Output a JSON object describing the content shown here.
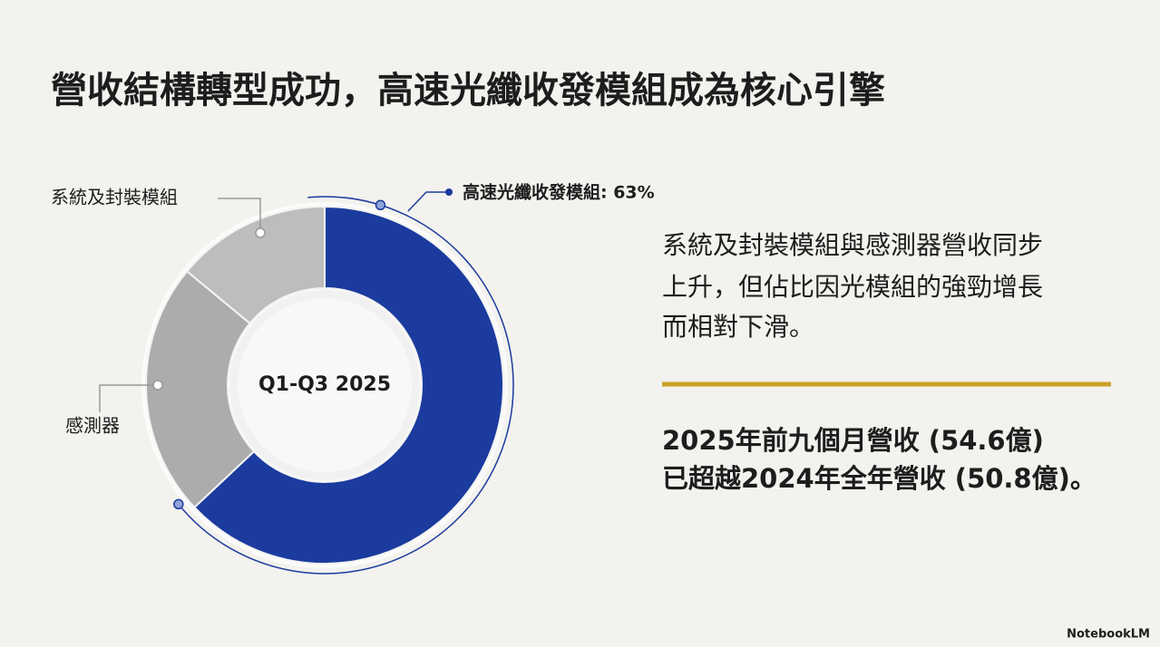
{
  "chart_data": {
    "type": "donut",
    "title": "營收結構轉型成功，高速光纖收發模組成為核心引擎",
    "center_label": "Q1-Q3 2025",
    "categories": [
      "高速光纖收發模組: 63%",
      "感測器",
      "系統及封裝模組"
    ],
    "values": [
      63,
      23,
      14
    ],
    "colors": [
      "#1b3b9e",
      "#acacac",
      "#bdbdbd"
    ]
  },
  "notes": [
    "系統及封裝模組與感測器營收同步",
    "上升，但佔比因光模組的強勁增長",
    "而相對下滑。"
  ],
  "highlights": [
    "2025年前九個月營收 (54.6億)",
    "已超越2024年全年營收 (50.8億)。"
  ],
  "footer": "NotebookLM"
}
